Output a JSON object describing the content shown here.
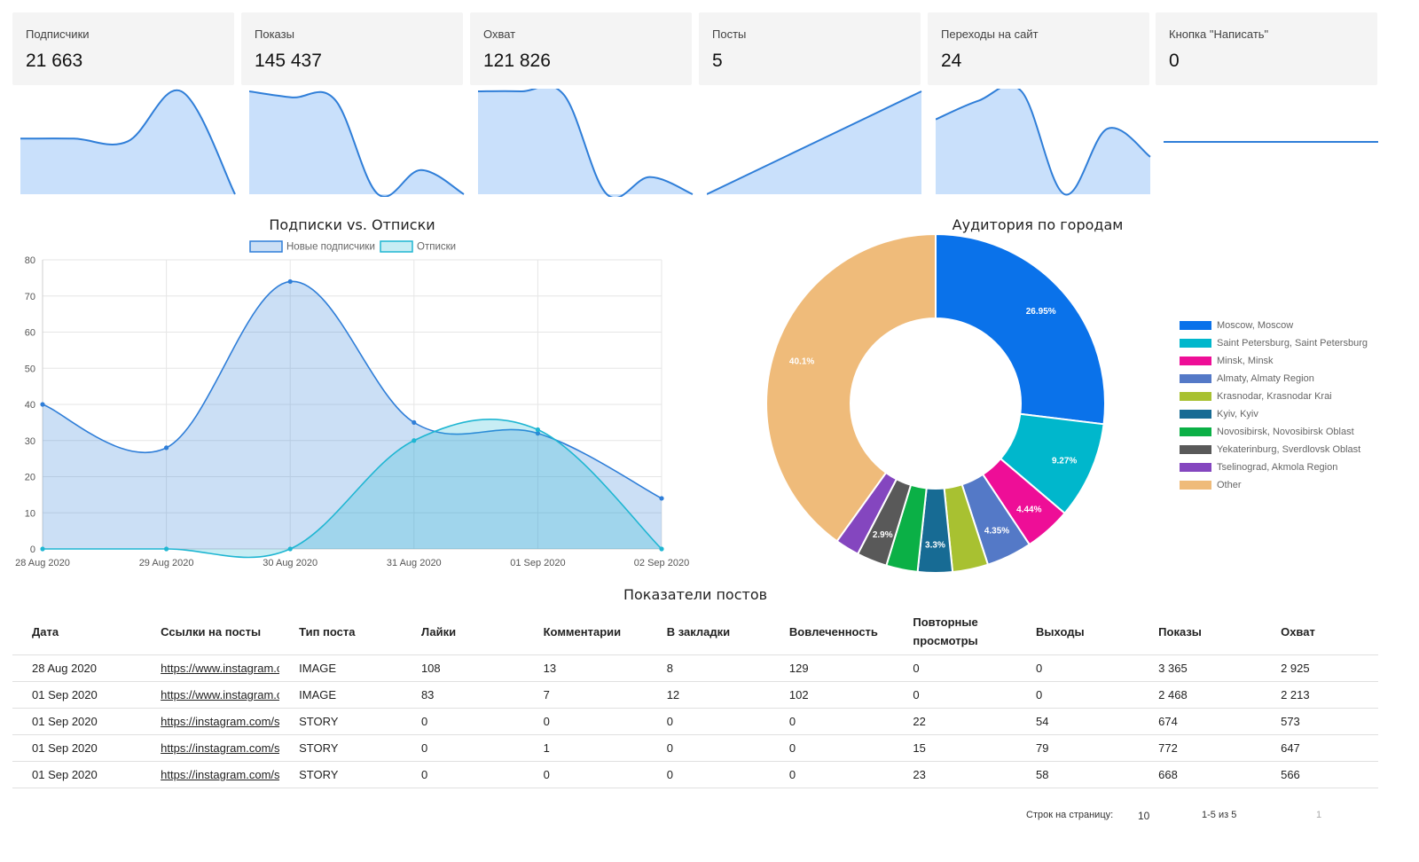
{
  "cards": [
    {
      "label": "Подписчики",
      "value": "21 663"
    },
    {
      "label": "Показы",
      "value": "145 437"
    },
    {
      "label": "Охват",
      "value": "121 826"
    },
    {
      "label": "Посты",
      "value": "5"
    },
    {
      "label": "Переходы на сайт",
      "value": "24"
    },
    {
      "label": "Кнопка \"Написать\"",
      "value": "0"
    }
  ],
  "sparklines": [
    {
      "values": [
        40,
        40,
        38,
        74,
        0
      ]
    },
    {
      "values": [
        145,
        140,
        138,
        60,
        80,
        60
      ]
    },
    {
      "values": [
        120,
        120,
        118,
        60,
        70,
        60
      ]
    },
    {
      "values": [
        0,
        5
      ]
    },
    {
      "values": [
        16,
        20,
        22,
        0,
        14,
        8
      ]
    },
    {
      "values": [
        0,
        0
      ]
    }
  ],
  "chart_data": [
    {
      "type": "area",
      "title": "Подписки vs. Отписки",
      "x": [
        "28 Aug 2020",
        "29 Aug 2020",
        "30 Aug 2020",
        "31 Aug 2020",
        "01 Sep 2020",
        "02 Sep 2020"
      ],
      "ylim": [
        0,
        80
      ],
      "yticks": [
        0,
        10,
        20,
        30,
        40,
        50,
        60,
        70,
        80
      ],
      "grid": true,
      "legend_position": "top",
      "series": [
        {
          "name": "Новые подписчики",
          "values": [
            40,
            28,
            74,
            35,
            32,
            14
          ],
          "color": "#2f7ed8"
        },
        {
          "name": "Отписки",
          "values": [
            0,
            0,
            0,
            30,
            33,
            0
          ],
          "color": "#1fb6d2"
        }
      ]
    },
    {
      "type": "pie",
      "title": "Аудитория по городам",
      "legend_position": "right",
      "slices": [
        {
          "label": "Moscow, Moscow",
          "value": 26.95,
          "text": "26.95%",
          "color": "#0a72ea"
        },
        {
          "label": "Saint Petersburg, Saint Petersburg",
          "value": 9.27,
          "text": "9.27%",
          "color": "#00b7cc"
        },
        {
          "label": "Minsk, Minsk",
          "value": 4.44,
          "text": "4.44%",
          "color": "#ee0e97"
        },
        {
          "label": "Almaty, Almaty Region",
          "value": 4.35,
          "text": "4.35%",
          "color": "#5479c7"
        },
        {
          "label": "Krasnodar, Krasnodar Krai",
          "value": 3.4,
          "text": "",
          "color": "#a8c131"
        },
        {
          "label": "Kyiv, Kyiv",
          "value": 3.3,
          "text": "3.3%",
          "color": "#176b94"
        },
        {
          "label": "Novosibirsk, Novosibirsk Oblast",
          "value": 3.0,
          "text": "",
          "color": "#0bb046"
        },
        {
          "label": "Yekaterinburg, Sverdlovsk Oblast",
          "value": 2.9,
          "text": "2.9%",
          "color": "#595959"
        },
        {
          "label": "Tselinograd, Akmola Region",
          "value": 2.3,
          "text": "",
          "color": "#8446bf"
        },
        {
          "label": "Other",
          "value": 40.1,
          "text": "40.1%",
          "color": "#efbb7a"
        }
      ]
    }
  ],
  "table": {
    "title": "Показатели постов",
    "headers": [
      "Дата",
      "Ссылки на посты",
      "Тип поста",
      "Лайки",
      "Комментарии",
      "В закладки",
      "Вовлеченность",
      "Повторные просмотры",
      "Выходы",
      "Показы",
      "Охват"
    ],
    "rows": [
      [
        "28 Aug 2020",
        "https://www.instagram.com/p/",
        "IMAGE",
        "108",
        "13",
        "8",
        "129",
        "0",
        "0",
        "3 365",
        "2 925"
      ],
      [
        "01 Sep 2020",
        "https://www.instagram.com/p/",
        "IMAGE",
        "83",
        "7",
        "12",
        "102",
        "0",
        "0",
        "2 468",
        "2 213"
      ],
      [
        "01 Sep 2020",
        "https://instagram.com/stories/",
        "STORY",
        "0",
        "0",
        "0",
        "0",
        "22",
        "54",
        "674",
        "573"
      ],
      [
        "01 Sep 2020",
        "https://instagram.com/stories/",
        "STORY",
        "0",
        "1",
        "0",
        "0",
        "15",
        "79",
        "772",
        "647"
      ],
      [
        "01 Sep 2020",
        "https://instagram.com/stories/",
        "STORY",
        "0",
        "0",
        "0",
        "0",
        "23",
        "58",
        "668",
        "566"
      ]
    ]
  },
  "pagination": {
    "rows_per_page_label": "Строк на страницу:",
    "rows_per_page_value": "10",
    "range": "1-5 из 5",
    "page": "1"
  }
}
